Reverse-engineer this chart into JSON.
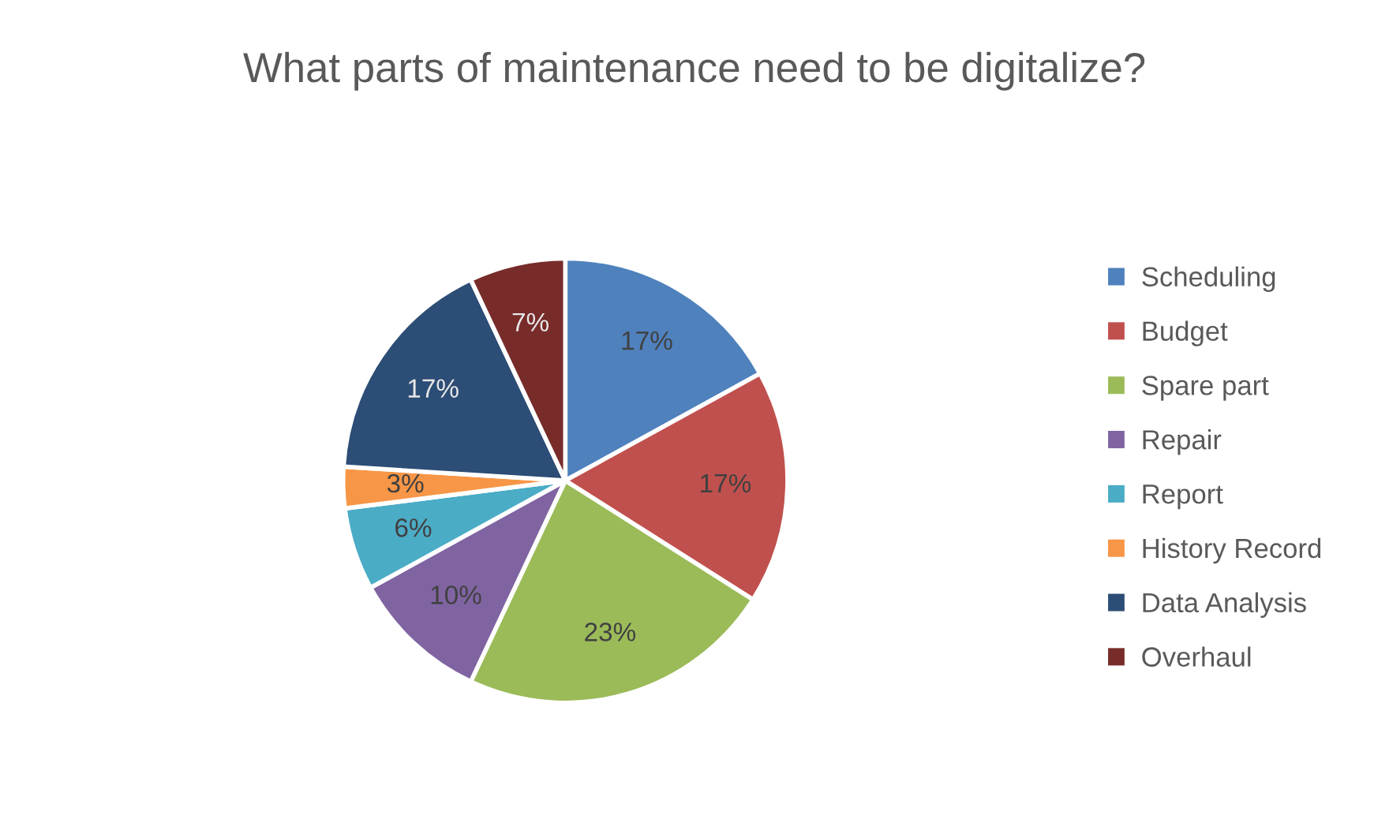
{
  "chart_data": {
    "type": "pie",
    "title": "What parts of maintenance need to be digitalize?",
    "categories": [
      "Scheduling",
      "Budget",
      "Spare part",
      "Repair",
      "Report",
      "History Record",
      "Data Analysis",
      "Overhaul"
    ],
    "values": [
      17,
      17,
      23,
      10,
      6,
      3,
      17,
      7
    ],
    "colors": [
      "#4f81bd",
      "#c0504d",
      "#9bbb59",
      "#8064a2",
      "#4bacc6",
      "#f79646",
      "#2c4d75",
      "#772c2a"
    ],
    "value_labels": [
      "17%",
      "17%",
      "23%",
      "10%",
      "6%",
      "3%",
      "17%",
      "7%"
    ],
    "legend": "right"
  }
}
